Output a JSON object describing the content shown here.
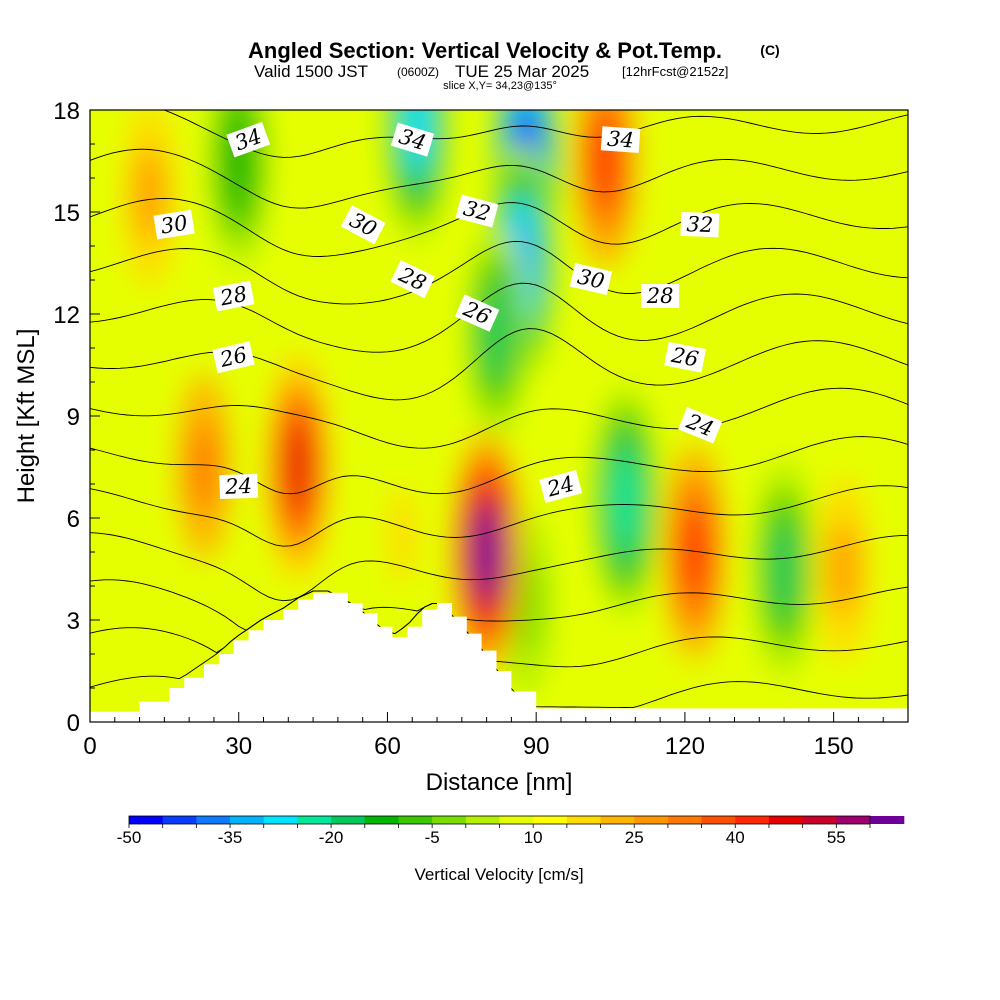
{
  "header": {
    "title": "Angled Section: Vertical Velocity & Pot.Temp.",
    "copyright": "(C)",
    "valid_prefix": "Valid 1500 JST",
    "valid_utc": "(0600Z)",
    "valid_date": "TUE 25 Mar 2025",
    "forecast": "[12hrFcst@2152z]",
    "slice": "slice X,Y= 34,23@135°"
  },
  "chart_data": {
    "type": "heatmap",
    "title": "Angled Section: Vertical Velocity & Pot.Temp.",
    "xlabel": "Distance [nm]",
    "ylabel": "Height [Kft MSL]",
    "xlim": [
      0,
      165
    ],
    "ylim": [
      0,
      18
    ],
    "x_ticks": [
      0,
      30,
      60,
      90,
      120,
      150
    ],
    "y_ticks": [
      0,
      3,
      6,
      9,
      12,
      15,
      18
    ],
    "grid": false,
    "colorbar": {
      "label": "Vertical Velocity [cm/s]",
      "min": -50,
      "max": 60,
      "step": 5,
      "tick_values": [
        -50,
        -35,
        -20,
        -5,
        10,
        25,
        40,
        55
      ],
      "colors": [
        "#0000ff",
        "#0a3cff",
        "#0f7aff",
        "#00b4ff",
        "#00e5ff",
        "#00e69a",
        "#00c85a",
        "#00b400",
        "#3cc800",
        "#78dc00",
        "#b4f000",
        "#e6ff00",
        "#ffff00",
        "#ffdc00",
        "#ffb400",
        "#ff9600",
        "#ff7800",
        "#ff5000",
        "#ff2800",
        "#e60000",
        "#c8002a",
        "#a0006e",
        "#6e009a"
      ]
    },
    "velocity_features": [
      {
        "x": 88,
        "y": 16.5,
        "value": -50
      },
      {
        "x": 87,
        "y": 13.5,
        "value": -35
      },
      {
        "x": 82,
        "y": 11.5,
        "value": -20
      },
      {
        "x": 66,
        "y": 17.5,
        "value": -30
      },
      {
        "x": 108,
        "y": 6.5,
        "value": -25
      },
      {
        "x": 140,
        "y": 4.5,
        "value": -20
      },
      {
        "x": 30,
        "y": 16.5,
        "value": -15
      },
      {
        "x": 88,
        "y": 3.5,
        "value": -5
      },
      {
        "x": 42,
        "y": 7.5,
        "value": 45
      },
      {
        "x": 80,
        "y": 5.0,
        "value": 60
      },
      {
        "x": 104,
        "y": 16.5,
        "value": 40
      },
      {
        "x": 122,
        "y": 5.0,
        "value": 40
      },
      {
        "x": 23,
        "y": 7.5,
        "value": 30
      },
      {
        "x": 12,
        "y": 15.5,
        "value": 25
      },
      {
        "x": 152,
        "y": 4.5,
        "value": 25
      },
      {
        "x": 63,
        "y": 5.5,
        "value": 15
      }
    ],
    "isotherms": {
      "name": "Potential Temperature",
      "levels": [
        23,
        24,
        25,
        26,
        27,
        28,
        29,
        30,
        31,
        32,
        33,
        34,
        35
      ],
      "labels": [
        {
          "text": "34",
          "x": 32,
          "y": 17.1
        },
        {
          "text": "34",
          "x": 65,
          "y": 17.1
        },
        {
          "text": "34",
          "x": 107,
          "y": 17.1
        },
        {
          "text": "30",
          "x": 17,
          "y": 14.6
        },
        {
          "text": "30",
          "x": 55,
          "y": 14.6
        },
        {
          "text": "32",
          "x": 78,
          "y": 15.0
        },
        {
          "text": "32",
          "x": 123,
          "y": 14.6
        },
        {
          "text": "28",
          "x": 29,
          "y": 12.5
        },
        {
          "text": "28",
          "x": 65,
          "y": 13.0
        },
        {
          "text": "30",
          "x": 101,
          "y": 13.0
        },
        {
          "text": "28",
          "x": 115,
          "y": 12.5
        },
        {
          "text": "26",
          "x": 29,
          "y": 10.7
        },
        {
          "text": "26",
          "x": 78,
          "y": 12.0
        },
        {
          "text": "26",
          "x": 120,
          "y": 10.7
        },
        {
          "text": "24",
          "x": 30,
          "y": 6.9
        },
        {
          "text": "24",
          "x": 95,
          "y": 6.9
        },
        {
          "text": "24",
          "x": 123,
          "y": 8.7
        }
      ]
    },
    "terrain": [
      {
        "x": 0,
        "h": 0.3
      },
      {
        "x": 10,
        "h": 0.6
      },
      {
        "x": 16,
        "h": 1.0
      },
      {
        "x": 19,
        "h": 1.3
      },
      {
        "x": 23,
        "h": 1.7
      },
      {
        "x": 26,
        "h": 2.0
      },
      {
        "x": 29,
        "h": 2.4
      },
      {
        "x": 32,
        "h": 2.7
      },
      {
        "x": 35,
        "h": 3.0
      },
      {
        "x": 39,
        "h": 3.3
      },
      {
        "x": 42,
        "h": 3.6
      },
      {
        "x": 45,
        "h": 3.8
      },
      {
        "x": 48,
        "h": 3.8
      },
      {
        "x": 52,
        "h": 3.5
      },
      {
        "x": 55,
        "h": 3.2
      },
      {
        "x": 58,
        "h": 2.8
      },
      {
        "x": 61,
        "h": 2.5
      },
      {
        "x": 64,
        "h": 2.8
      },
      {
        "x": 67,
        "h": 3.3
      },
      {
        "x": 70,
        "h": 3.5
      },
      {
        "x": 73,
        "h": 3.1
      },
      {
        "x": 76,
        "h": 2.6
      },
      {
        "x": 79,
        "h": 2.1
      },
      {
        "x": 82,
        "h": 1.5
      },
      {
        "x": 85,
        "h": 0.9
      },
      {
        "x": 90,
        "h": 0.4
      },
      {
        "x": 165,
        "h": 0.3
      }
    ]
  }
}
